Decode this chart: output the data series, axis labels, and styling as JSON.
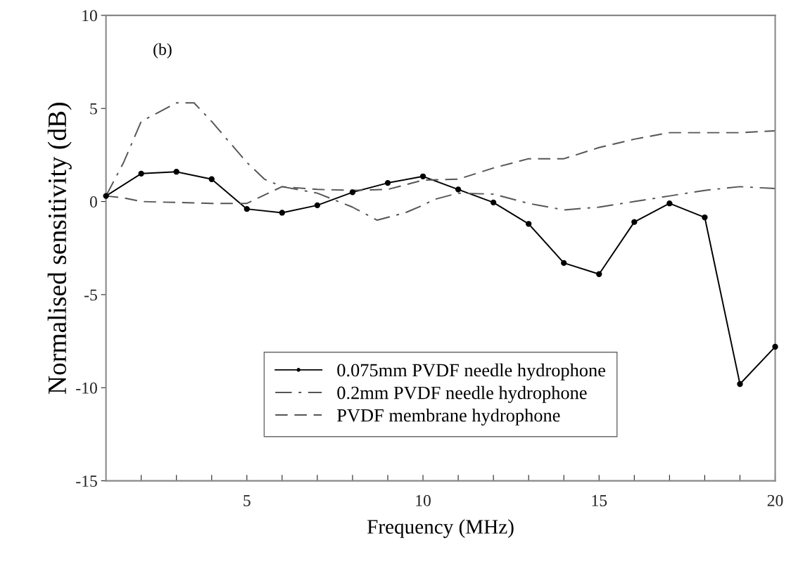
{
  "chart_data": {
    "type": "line",
    "xlabel": "Frequency (MHz)",
    "ylabel": "Normalised sensitivity (dB)",
    "annotations": [
      "(b)"
    ],
    "xlim": [
      1,
      20
    ],
    "ylim": [
      -15,
      10
    ],
    "xticks": [
      {
        "value": 2,
        "label": null
      },
      {
        "value": 3,
        "label": null
      },
      {
        "value": 4,
        "label": null
      },
      5,
      {
        "value": 6,
        "label": null
      },
      {
        "value": 7,
        "label": null
      },
      {
        "value": 8,
        "label": null
      },
      {
        "value": 9,
        "label": null
      },
      10,
      {
        "value": 11,
        "label": null
      },
      {
        "value": 12,
        "label": null
      },
      {
        "value": 13,
        "label": null
      },
      {
        "value": 14,
        "label": null
      },
      15,
      {
        "value": 16,
        "label": null
      },
      {
        "value": 17,
        "label": null
      },
      {
        "value": 18,
        "label": null
      },
      {
        "value": 19,
        "label": null
      },
      20
    ],
    "yticks": [
      -15,
      -10,
      -5,
      0,
      5,
      10
    ],
    "grid": false,
    "legend": "bottom",
    "series": [
      {
        "name": "0.075mm PVDF needle hydrophone",
        "color": "#000000",
        "marker": "circle",
        "line_style": "solid",
        "x": [
          1,
          2,
          3,
          4,
          5,
          6,
          7,
          8,
          9,
          10,
          11,
          12,
          13,
          14,
          15,
          16,
          17,
          18,
          19,
          20
        ],
        "values": [
          0.3,
          1.5,
          1.6,
          1.2,
          -0.4,
          -0.6,
          -0.2,
          0.5,
          1.0,
          1.35,
          0.65,
          -0.05,
          -1.2,
          -3.3,
          -3.9,
          -1.1,
          -0.1,
          -0.85,
          -9.8,
          -7.8
        ]
      },
      {
        "name": "0.2mm PVDF needle hydrophone",
        "color": "#555555",
        "marker": "none",
        "line_style": "dashdot",
        "x": [
          1,
          1.5,
          2,
          3,
          3.5,
          4,
          5,
          5.5,
          6,
          7,
          8,
          8.7,
          9.5,
          10,
          10.3,
          11,
          12,
          13,
          14,
          15,
          16,
          17,
          18,
          19,
          20
        ],
        "values": [
          0.3,
          2.1,
          4.3,
          5.3,
          5.3,
          4.3,
          2.1,
          1.2,
          0.8,
          0.45,
          -0.3,
          -1.0,
          -0.6,
          -0.2,
          0.1,
          0.45,
          0.4,
          -0.1,
          -0.45,
          -0.3,
          0.0,
          0.3,
          0.6,
          0.8,
          0.7
        ]
      },
      {
        "name": "PVDF membrane hydrophone",
        "color": "#555555",
        "marker": "none",
        "line_style": "dashed",
        "x": [
          1,
          1.5,
          2,
          3,
          4,
          5,
          6,
          7,
          8,
          9,
          10,
          11,
          12,
          13,
          14,
          15,
          16,
          17,
          18,
          19,
          20
        ],
        "values": [
          0.3,
          0.2,
          0.0,
          -0.05,
          -0.1,
          -0.1,
          0.8,
          0.65,
          0.6,
          0.65,
          1.15,
          1.2,
          1.8,
          2.3,
          2.3,
          2.9,
          3.35,
          3.7,
          3.7,
          3.7,
          3.8
        ]
      }
    ]
  }
}
